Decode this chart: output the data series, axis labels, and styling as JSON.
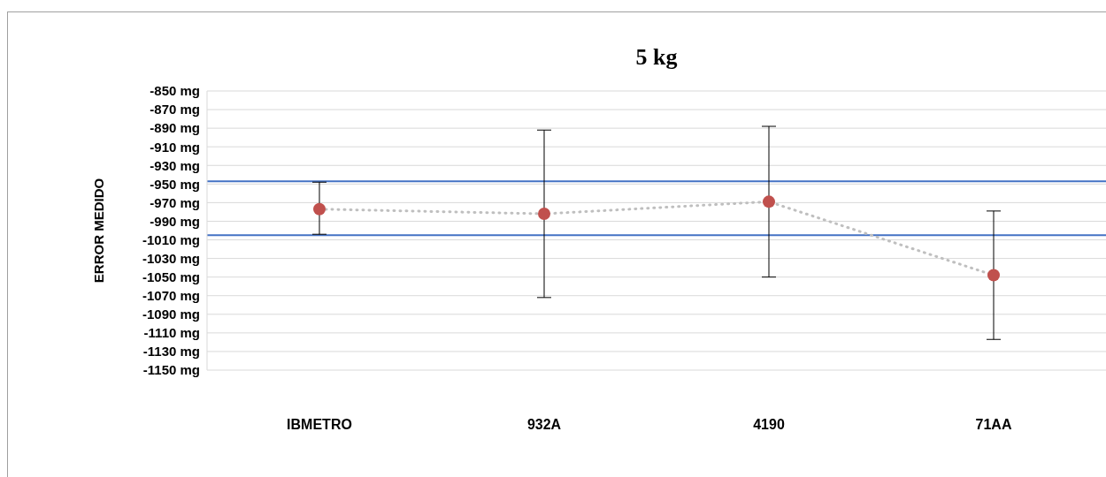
{
  "chart_data": {
    "type": "line",
    "title": "5 kg",
    "ylabel": "ERROR MEDIDO",
    "categories": [
      "IBMETRO",
      "932A",
      "4190",
      "71AA"
    ],
    "series": [
      {
        "color": "#bfbfbf",
        "values": [
          -977,
          -982,
          -969,
          -1048
        ],
        "line_style": "dotted",
        "marker": "none"
      },
      {
        "type": "scatter",
        "color": "#c0504d",
        "values": [
          -977,
          -982,
          -969,
          -1048
        ],
        "marker": "circle",
        "errors": [
          [
            -1004,
            -948
          ],
          [
            -1072,
            -892
          ],
          [
            -1050,
            -888
          ],
          [
            -1117,
            -979
          ]
        ]
      }
    ],
    "ylim": [
      -1150,
      -850
    ],
    "yticks": [
      {
        "value": -1150,
        "label": "-1150 mg"
      },
      {
        "value": -1130,
        "label": "-1130 mg"
      },
      {
        "value": -1110,
        "label": "-1110 mg"
      },
      {
        "value": -1090,
        "label": "-1090 mg"
      },
      {
        "value": -1070,
        "label": "-1070 mg"
      },
      {
        "value": -1050,
        "label": "-1050 mg"
      },
      {
        "value": -1030,
        "label": "-1030 mg"
      },
      {
        "value": -1010,
        "label": "-1010 mg"
      },
      {
        "value": -990,
        "label": "-990 mg"
      },
      {
        "value": -970,
        "label": "-970 mg"
      },
      {
        "value": -950,
        "label": "-950 mg"
      },
      {
        "value": -930,
        "label": "-930 mg"
      },
      {
        "value": -910,
        "label": "-910 mg"
      },
      {
        "value": -890,
        "label": "-890 mg"
      },
      {
        "value": -870,
        "label": "-870 mg"
      },
      {
        "value": -850,
        "label": "-850 mg"
      }
    ],
    "ref_lines": [
      {
        "axis": "y",
        "value": -947,
        "color": "#4472c4"
      },
      {
        "axis": "y",
        "value": -1005,
        "color": "#4472c4"
      }
    ],
    "grid": "y",
    "legend": false
  }
}
